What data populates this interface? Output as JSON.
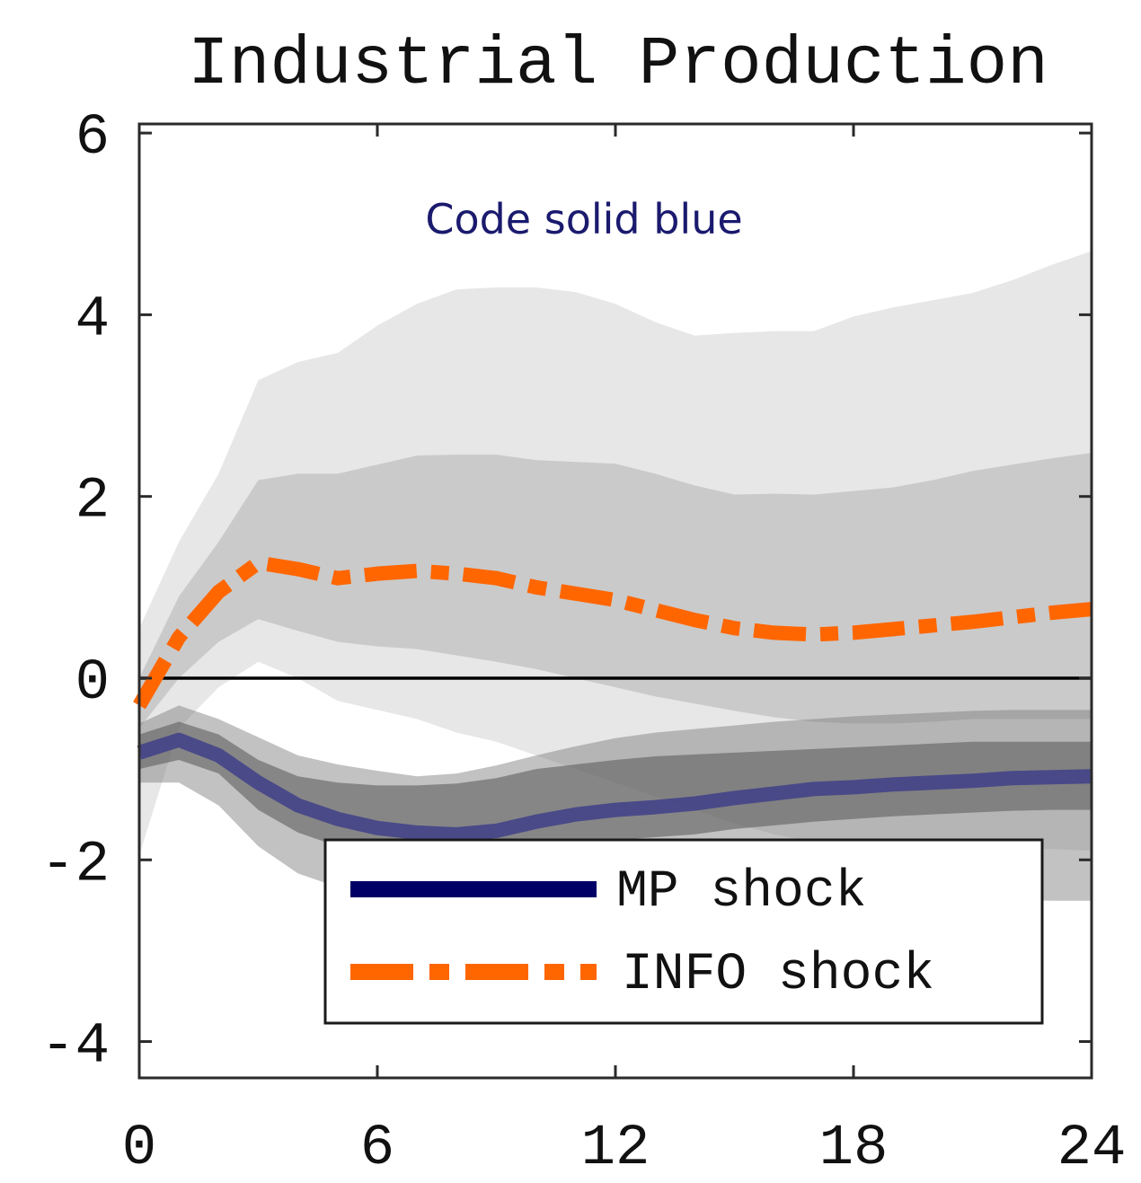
{
  "chart_data": {
    "type": "line",
    "title": "Industrial Production",
    "annotation": "Code solid blue",
    "xlim": [
      0,
      24
    ],
    "ylim": [
      -4.4,
      6.1
    ],
    "x_ticks": [
      0,
      6,
      12,
      18,
      24
    ],
    "x_tick_labels": [
      "0",
      "6",
      "12",
      "18",
      "24"
    ],
    "y_ticks": [
      -4,
      -2,
      0,
      2,
      4,
      6
    ],
    "y_tick_labels": [
      "-4",
      "-2",
      "0",
      "2",
      "4",
      "6"
    ],
    "grid": false,
    "legend_position": "lower-center",
    "zero_line": 0,
    "x": [
      0,
      1,
      2,
      3,
      4,
      5,
      6,
      7,
      8,
      9,
      10,
      11,
      12,
      13,
      14,
      15,
      16,
      17,
      18,
      19,
      20,
      21,
      22,
      23,
      24
    ],
    "series": [
      {
        "name": "INFO shock",
        "color": "#ff6600",
        "style": "dash-dot",
        "values": [
          -0.3,
          0.45,
          0.95,
          1.27,
          1.2,
          1.1,
          1.15,
          1.18,
          1.15,
          1.1,
          1.0,
          0.93,
          0.86,
          0.75,
          0.64,
          0.55,
          0.5,
          0.48,
          0.5,
          0.54,
          0.58,
          0.62,
          0.67,
          0.72,
          0.76
        ],
        "bands": {
          "inner_lower": [
            -0.55,
            0.0,
            0.4,
            0.65,
            0.52,
            0.4,
            0.35,
            0.32,
            0.25,
            0.18,
            0.1,
            0.0,
            -0.1,
            -0.2,
            -0.28,
            -0.36,
            -0.43,
            -0.48,
            -0.5,
            -0.5,
            -0.48,
            -0.45,
            -0.45,
            -0.45,
            -0.45
          ],
          "inner_upper": [
            0.0,
            0.9,
            1.5,
            2.18,
            2.25,
            2.25,
            2.35,
            2.45,
            2.46,
            2.46,
            2.4,
            2.38,
            2.36,
            2.25,
            2.12,
            2.02,
            2.03,
            2.02,
            2.06,
            2.1,
            2.18,
            2.28,
            2.35,
            2.42,
            2.48
          ],
          "outer_lower": [
            -1.95,
            -0.55,
            -0.1,
            0.18,
            0.0,
            -0.25,
            -0.35,
            -0.45,
            -0.6,
            -0.7,
            -0.85,
            -1.0,
            -1.15,
            -1.3,
            -1.45,
            -1.6,
            -1.72,
            -1.8,
            -1.85,
            -1.88,
            -1.88,
            -1.88,
            -1.88,
            -1.88,
            -1.9
          ],
          "outer_upper": [
            0.55,
            1.5,
            2.25,
            3.28,
            3.48,
            3.58,
            3.88,
            4.12,
            4.28,
            4.3,
            4.3,
            4.25,
            4.12,
            3.92,
            3.77,
            3.8,
            3.82,
            3.82,
            3.98,
            4.08,
            4.16,
            4.24,
            4.38,
            4.55,
            4.7
          ]
        }
      },
      {
        "name": "MP shock",
        "color": "#000066",
        "style": "solid",
        "values": [
          -0.82,
          -0.68,
          -0.85,
          -1.15,
          -1.4,
          -1.55,
          -1.65,
          -1.7,
          -1.72,
          -1.68,
          -1.58,
          -1.5,
          -1.45,
          -1.42,
          -1.38,
          -1.32,
          -1.27,
          -1.22,
          -1.2,
          -1.17,
          -1.15,
          -1.13,
          -1.1,
          -1.09,
          -1.08
        ],
        "bands": {
          "inner_lower": [
            -1.0,
            -0.9,
            -1.05,
            -1.45,
            -1.7,
            -1.85,
            -1.95,
            -2.0,
            -2.0,
            -1.98,
            -1.9,
            -1.82,
            -1.78,
            -1.75,
            -1.72,
            -1.66,
            -1.62,
            -1.58,
            -1.55,
            -1.52,
            -1.5,
            -1.48,
            -1.46,
            -1.45,
            -1.45
          ],
          "inner_upper": [
            -0.62,
            -0.48,
            -0.62,
            -0.9,
            -1.08,
            -1.15,
            -1.18,
            -1.18,
            -1.16,
            -1.1,
            -1.0,
            -0.95,
            -0.9,
            -0.86,
            -0.84,
            -0.82,
            -0.8,
            -0.78,
            -0.76,
            -0.74,
            -0.72,
            -0.7,
            -0.7,
            -0.7,
            -0.7
          ],
          "outer_lower": [
            -1.15,
            -1.15,
            -1.4,
            -1.85,
            -2.15,
            -2.3,
            -2.42,
            -2.48,
            -2.5,
            -2.48,
            -2.42,
            -2.35,
            -2.3,
            -2.28,
            -2.28,
            -2.3,
            -2.32,
            -2.35,
            -2.38,
            -2.4,
            -2.42,
            -2.43,
            -2.44,
            -2.45,
            -2.45
          ],
          "outer_upper": [
            -0.5,
            -0.3,
            -0.45,
            -0.65,
            -0.85,
            -0.95,
            -1.02,
            -1.08,
            -1.05,
            -0.96,
            -0.85,
            -0.75,
            -0.66,
            -0.6,
            -0.56,
            -0.52,
            -0.48,
            -0.45,
            -0.42,
            -0.4,
            -0.38,
            -0.36,
            -0.35,
            -0.35,
            -0.35
          ]
        }
      }
    ]
  }
}
